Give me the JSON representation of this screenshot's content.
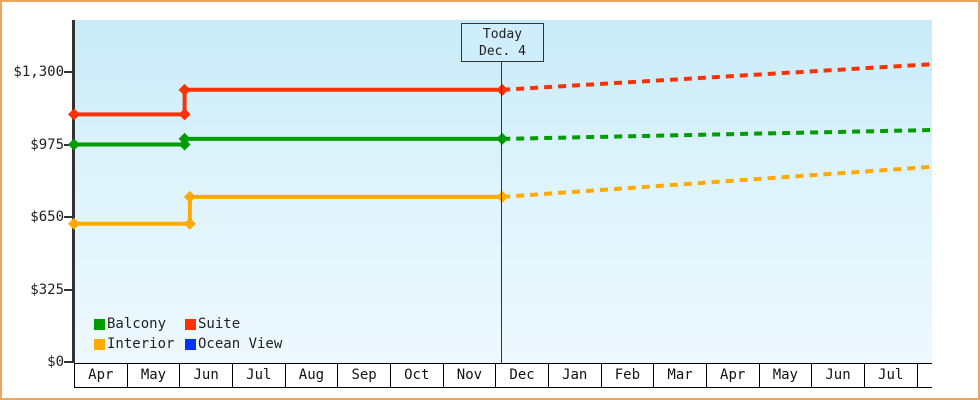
{
  "window": {
    "frame_border_color": "#eba55e",
    "plot_bg_top": "#c9ebf8",
    "plot_bg_bottom": "#eef9fe"
  },
  "chart_data": {
    "type": "line",
    "title": "",
    "xlabel": "",
    "ylabel": "",
    "grid": false,
    "legend_position": "bottom-left",
    "x_labels": [
      "Apr",
      "May",
      "Jun",
      "Jul",
      "Aug",
      "Sep",
      "Oct",
      "Nov",
      "Dec",
      "Jan",
      "Feb",
      "Mar",
      "Apr",
      "May",
      "Jun",
      "Jul"
    ],
    "y_ticks": [
      {
        "label": "$0",
        "value": 0
      },
      {
        "label": "$325",
        "value": 325
      },
      {
        "label": "$650",
        "value": 650
      },
      {
        "label": "$975",
        "value": 975
      },
      {
        "label": "$1,300",
        "value": 1300
      }
    ],
    "ylim": [
      0,
      1300
    ],
    "today": {
      "label": "Today",
      "date": "Dec. 4",
      "month_index": 8.13
    },
    "series": [
      {
        "name": "Balcony",
        "color": "#009c00",
        "solid": [
          [
            0,
            975
          ],
          [
            2.1,
            975
          ],
          [
            2.1,
            1000
          ],
          [
            8.13,
            1000
          ]
        ],
        "forecast": [
          [
            8.13,
            1000
          ],
          [
            16.29,
            1040
          ]
        ]
      },
      {
        "name": "Suite",
        "color": "#f93305",
        "solid": [
          [
            0,
            1110
          ],
          [
            2.1,
            1110
          ],
          [
            2.1,
            1220
          ],
          [
            8.13,
            1220
          ]
        ],
        "forecast": [
          [
            8.13,
            1220
          ],
          [
            16.29,
            1335
          ]
        ]
      },
      {
        "name": "Interior",
        "color": "#ffaa00",
        "solid": [
          [
            0,
            620
          ],
          [
            2.2,
            620
          ],
          [
            2.2,
            740
          ],
          [
            8.13,
            740
          ]
        ],
        "forecast": [
          [
            8.13,
            740
          ],
          [
            16.29,
            875
          ]
        ]
      },
      {
        "name": "Ocean View",
        "color": "#0033ff",
        "solid": [],
        "forecast": []
      }
    ]
  }
}
